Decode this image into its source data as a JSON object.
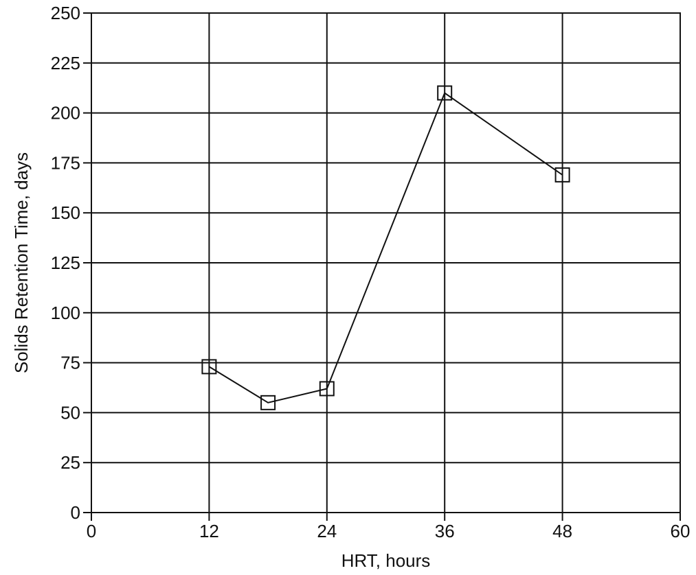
{
  "chart_data": {
    "type": "line",
    "title": "",
    "xlabel": "HRT, hours",
    "ylabel": "Solids Retention Time, days",
    "xlim": [
      0,
      60
    ],
    "ylim": [
      0,
      250
    ],
    "x_ticks": [
      0,
      12,
      24,
      36,
      48,
      60
    ],
    "y_ticks": [
      0,
      25,
      50,
      75,
      100,
      125,
      150,
      175,
      200,
      225,
      250
    ],
    "x_tick_labels": [
      "0",
      "12",
      "24",
      "36",
      "48",
      "60"
    ],
    "y_tick_labels": [
      "0",
      "25",
      "50",
      "75",
      "100",
      "125",
      "150",
      "175",
      "200",
      "225",
      "250"
    ],
    "grid": true,
    "marker": "square-open",
    "line_color": "#111111",
    "series": [
      {
        "x": [
          12,
          18,
          24,
          36,
          48
        ],
        "y": [
          73,
          55,
          62,
          210,
          169
        ]
      }
    ]
  }
}
